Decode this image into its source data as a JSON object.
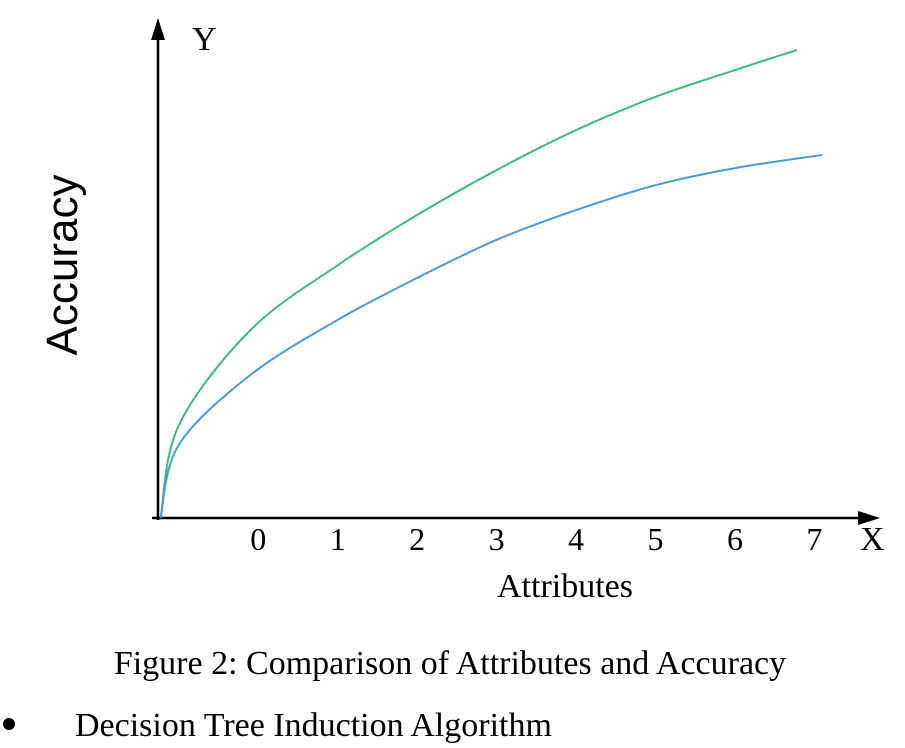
{
  "chart_data": {
    "type": "line",
    "x_axis_label": "Attributes",
    "y_axis_label": "Accuracy",
    "x_axis_letter": "X",
    "y_axis_letter": "Y",
    "xlim": [
      -1.3,
      7.7
    ],
    "xticks": [
      0,
      1,
      2,
      3,
      4,
      5,
      6,
      7
    ],
    "ylim": [
      0,
      10
    ],
    "series": [
      {
        "color": "#3dbb7a",
        "x": [
          -1.23,
          -1.0,
          -0.1,
          1,
          2,
          3,
          4,
          5,
          6,
          6.78
        ],
        "values": [
          0,
          1.9,
          3.85,
          5.18,
          6.21,
          7.13,
          7.95,
          8.63,
          9.18,
          9.59
        ]
      },
      {
        "color": "#4a9bd6",
        "x": [
          -1.23,
          -1.0,
          -0.1,
          1,
          2,
          3,
          4,
          5,
          6,
          7.1
        ],
        "values": [
          0,
          1.5,
          2.93,
          4.06,
          4.92,
          5.7,
          6.31,
          6.82,
          7.17,
          7.44
        ]
      }
    ]
  },
  "caption": "Figure 2: Comparison of Attributes and Accuracy",
  "list_items": [
    "Decision Tree Induction Algorithm"
  ]
}
